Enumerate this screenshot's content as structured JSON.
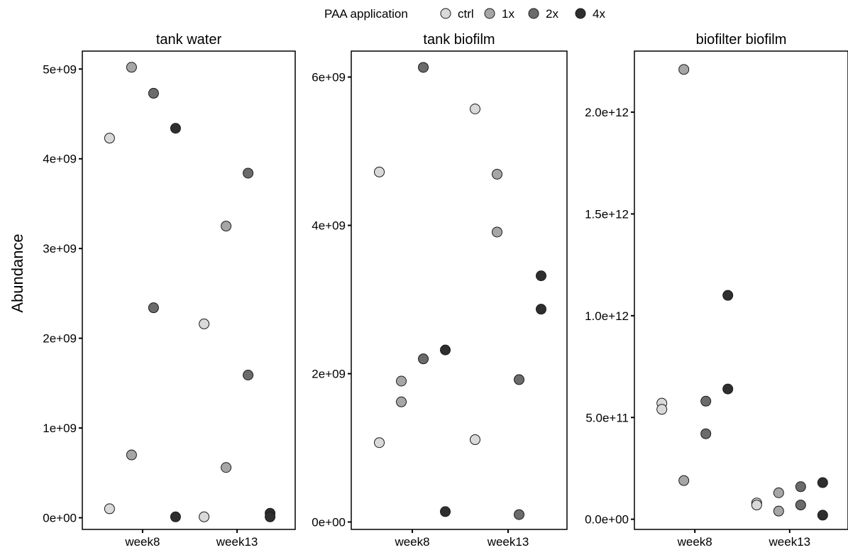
{
  "chart_data": {
    "type": "scatter",
    "ylabel": "Abundance",
    "legend": {
      "title": "PAA application",
      "placement": "top",
      "entries": [
        {
          "label": "ctrl",
          "color": "#d9d9d9"
        },
        {
          "label": "1x",
          "color": "#a6a6a6"
        },
        {
          "label": "2x",
          "color": "#6b6b6b"
        },
        {
          "label": "4x",
          "color": "#2e2e2e"
        }
      ]
    },
    "categories": [
      "week8",
      "week13"
    ],
    "panels": [
      {
        "title": "tank water",
        "ylim": [
          -130000000.0,
          5200000000.0
        ],
        "yticks": [
          {
            "value": 0,
            "label": "0e+00"
          },
          {
            "value": 1000000000.0,
            "label": "1e+09"
          },
          {
            "value": 2000000000.0,
            "label": "2e+09"
          },
          {
            "value": 3000000000.0,
            "label": "3e+09"
          },
          {
            "value": 4000000000.0,
            "label": "4e+09"
          },
          {
            "value": 5000000000.0,
            "label": "5e+09"
          }
        ],
        "series": [
          {
            "name": "ctrl",
            "points": [
              {
                "x": "week8",
                "y": 4230000000.0
              },
              {
                "x": "week8",
                "y": 100000000.0
              },
              {
                "x": "week13",
                "y": 2160000000.0
              },
              {
                "x": "week13",
                "y": 10000000.0
              }
            ]
          },
          {
            "name": "1x",
            "points": [
              {
                "x": "week8",
                "y": 5020000000.0
              },
              {
                "x": "week8",
                "y": 700000000.0
              },
              {
                "x": "week13",
                "y": 3250000000.0
              },
              {
                "x": "week13",
                "y": 560000000.0
              }
            ]
          },
          {
            "name": "2x",
            "points": [
              {
                "x": "week8",
                "y": 4730000000.0
              },
              {
                "x": "week8",
                "y": 2340000000.0
              },
              {
                "x": "week13",
                "y": 3840000000.0
              },
              {
                "x": "week13",
                "y": 1590000000.0
              }
            ]
          },
          {
            "name": "4x",
            "points": [
              {
                "x": "week8",
                "y": 4340000000.0
              },
              {
                "x": "week8",
                "y": 10000000.0
              },
              {
                "x": "week13",
                "y": 50000000.0
              },
              {
                "x": "week13",
                "y": 10000000.0
              }
            ]
          }
        ]
      },
      {
        "title": "tank biofilm",
        "ylim": [
          -100000000.0,
          6350000000.0
        ],
        "yticks": [
          {
            "value": 0,
            "label": "0e+00"
          },
          {
            "value": 2000000000.0,
            "label": "2e+09"
          },
          {
            "value": 4000000000.0,
            "label": "4e+09"
          },
          {
            "value": 6000000000.0,
            "label": "6e+09"
          }
        ],
        "series": [
          {
            "name": "ctrl",
            "points": [
              {
                "x": "week8",
                "y": 4720000000.0
              },
              {
                "x": "week8",
                "y": 1070000000.0
              },
              {
                "x": "week13",
                "y": 5570000000.0
              },
              {
                "x": "week13",
                "y": 1110000000.0
              }
            ]
          },
          {
            "name": "1x",
            "points": [
              {
                "x": "week8",
                "y": 1900000000.0
              },
              {
                "x": "week8",
                "y": 1620000000.0
              },
              {
                "x": "week13",
                "y": 4690000000.0
              },
              {
                "x": "week13",
                "y": 3910000000.0
              }
            ]
          },
          {
            "name": "2x",
            "points": [
              {
                "x": "week8",
                "y": 6130000000.0
              },
              {
                "x": "week8",
                "y": 2200000000.0
              },
              {
                "x": "week13",
                "y": 1920000000.0
              },
              {
                "x": "week13",
                "y": 100000000.0
              }
            ]
          },
          {
            "name": "4x",
            "points": [
              {
                "x": "week8",
                "y": 2320000000.0
              },
              {
                "x": "week8",
                "y": 140000000.0
              },
              {
                "x": "week13",
                "y": 3320000000.0
              },
              {
                "x": "week13",
                "y": 2870000000.0
              }
            ]
          }
        ]
      },
      {
        "title": "biofilter biofilm",
        "ylim": [
          -50000000000.0,
          2300000000000.0
        ],
        "yticks": [
          {
            "value": 0,
            "label": "0.0e+00"
          },
          {
            "value": 500000000000.0,
            "label": "5.0e+11"
          },
          {
            "value": 1000000000000.0,
            "label": "1.0e+12"
          },
          {
            "value": 1500000000000.0,
            "label": "1.5e+12"
          },
          {
            "value": 2000000000000.0,
            "label": "2.0e+12"
          }
        ],
        "series": [
          {
            "name": "ctrl",
            "points": [
              {
                "x": "week8",
                "y": 570000000000.0
              },
              {
                "x": "week8",
                "y": 540000000000.0
              },
              {
                "x": "week13",
                "y": 80000000000.0
              },
              {
                "x": "week13",
                "y": 70000000000.0
              }
            ]
          },
          {
            "name": "1x",
            "points": [
              {
                "x": "week8",
                "y": 2210000000000.0
              },
              {
                "x": "week8",
                "y": 190000000000.0
              },
              {
                "x": "week13",
                "y": 130000000000.0
              },
              {
                "x": "week13",
                "y": 40000000000.0
              }
            ]
          },
          {
            "name": "2x",
            "points": [
              {
                "x": "week8",
                "y": 580000000000.0
              },
              {
                "x": "week8",
                "y": 420000000000.0
              },
              {
                "x": "week13",
                "y": 160000000000.0
              },
              {
                "x": "week13",
                "y": 70000000000.0
              }
            ]
          },
          {
            "name": "4x",
            "points": [
              {
                "x": "week8",
                "y": 1100000000000.0
              },
              {
                "x": "week8",
                "y": 640000000000.0
              },
              {
                "x": "week13",
                "y": 180000000000.0
              },
              {
                "x": "week13",
                "y": 20000000000.0
              }
            ]
          }
        ]
      }
    ]
  }
}
